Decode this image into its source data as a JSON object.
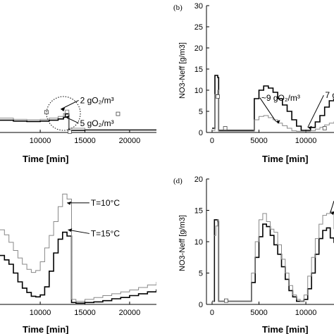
{
  "chart_data": [
    {
      "panel": "a",
      "type": "line",
      "xlabel": "Time [min]",
      "ylabel": "",
      "xticks": [
        10000,
        15000,
        20000
      ],
      "xlim": [
        5500,
        23000
      ],
      "ylim": [
        0,
        30
      ],
      "annotations": [
        {
          "text": "2 gO₂/m³",
          "x": 12300,
          "y": 5.5,
          "tx": 14300,
          "ty": 7.6
        },
        {
          "text": "5 gO₂/m³",
          "x": 12800,
          "y": 3.7,
          "tx": 14300,
          "ty": 2.2
        }
      ],
      "series": [
        {
          "color": "#000000",
          "width": 1.6,
          "x": [
            5500,
            7000,
            8500,
            10000,
            11000,
            12000,
            12600,
            12800,
            13200,
            15000,
            20000,
            23000
          ],
          "y": [
            2.9,
            2.7,
            2.6,
            2.7,
            2.9,
            3.2,
            3.6,
            4.4,
            0.5,
            0.6,
            0.6,
            0.6
          ]
        },
        {
          "color": "#888888",
          "width": 1.0,
          "x": [
            5500,
            7000,
            8500,
            10000,
            11000,
            12000,
            12600,
            12800,
            13200,
            15000,
            20000,
            23000
          ],
          "y": [
            3.4,
            3.1,
            3.0,
            3.1,
            3.4,
            3.8,
            4.5,
            5.3,
            1.0,
            0.7,
            0.7,
            0.7
          ]
        }
      ],
      "markers": [
        {
          "x": 10700,
          "y": 4.8
        },
        {
          "x": 18700,
          "y": 4.4
        },
        {
          "x": 13300,
          "y": 0.2
        }
      ]
    },
    {
      "panel": "b",
      "type": "line",
      "letter": "(b)",
      "xlabel": "Time [min]",
      "ylabel": "NO3-Neff [g/m3]",
      "xticks": [
        0,
        5000,
        10000
      ],
      "yticks": [
        0,
        5,
        10,
        15,
        20,
        25,
        30
      ],
      "xlim": [
        -600,
        13000
      ],
      "ylim": [
        0,
        30
      ],
      "annotations": [
        {
          "text": "~9 gO₂/m³",
          "x": 6800,
          "y": 2.6,
          "tx": 5100,
          "ty": 8.2
        },
        {
          "text": "7 g",
          "x": 10200,
          "y": 1.2,
          "tx": 11900,
          "ty": 8.8
        }
      ],
      "series": [
        {
          "color": "#000000",
          "width": 1.6,
          "x": [
            0,
            300,
            600,
            700,
            1000,
            4000,
            4500,
            5000,
            5500,
            6000,
            6500,
            7000,
            7500,
            8000,
            8500,
            9000,
            9500,
            10000,
            10500,
            11000,
            11500,
            12000,
            12500,
            13000
          ],
          "y": [
            1,
            13.5,
            13,
            0.5,
            0.5,
            0.5,
            8,
            10,
            11,
            10.5,
            9.5,
            8,
            6.5,
            5,
            3,
            1.5,
            0.5,
            0.5,
            1.2,
            2.5,
            4,
            6,
            7.5,
            8
          ]
        },
        {
          "color": "#888888",
          "width": 1.0,
          "x": [
            0,
            300,
            600,
            700,
            1000,
            4000,
            4500,
            5000,
            5500,
            6000,
            6500,
            7000,
            7500,
            8000,
            8500,
            9000,
            9500,
            10000,
            10500,
            11000,
            11500,
            12000,
            12500,
            13000
          ],
          "y": [
            0.5,
            9,
            10,
            0.3,
            0.3,
            0.3,
            3,
            3.8,
            4,
            3.5,
            3,
            2.2,
            1.6,
            1,
            0.4,
            0.3,
            0.3,
            0.3,
            0.4,
            0.8,
            1.2,
            1.8,
            2.2,
            2.6
          ]
        }
      ],
      "markers": [
        {
          "x": 600,
          "y": 8.5
        },
        {
          "x": 1400,
          "y": 1
        },
        {
          "x": 12000,
          "y": 1
        }
      ]
    },
    {
      "panel": "c",
      "type": "line",
      "xlabel": "Time [min]",
      "ylabel": "",
      "xticks": [
        10000,
        15000,
        20000
      ],
      "xlim": [
        5500,
        23000
      ],
      "ylim": [
        0,
        20
      ],
      "annotations": [
        {
          "text": "T=10°C",
          "x": 13000,
          "y": 16.2,
          "tx": 15500,
          "ty": 16.2
        },
        {
          "text": "T=15°C",
          "x": 13100,
          "y": 11.9,
          "tx": 15500,
          "ty": 11.3
        }
      ],
      "series": [
        {
          "color": "#000000",
          "width": 1.6,
          "x": [
            5500,
            6000,
            6500,
            7000,
            7500,
            8000,
            8500,
            9000,
            9500,
            10000,
            10500,
            11000,
            11500,
            12000,
            12500,
            13000,
            13500,
            14000,
            15000,
            16000,
            17000,
            18000,
            19000,
            20000,
            21000,
            22000,
            23000
          ],
          "y": [
            7.8,
            7.1,
            6.4,
            5,
            3.6,
            2.6,
            1.9,
            1.3,
            1.2,
            1.5,
            2.8,
            5.3,
            8.2,
            10.4,
            11.5,
            10.9,
            0.3,
            0.2,
            0.3,
            0.4,
            0.6,
            0.9,
            1.1,
            1.4,
            1.7,
            2,
            2.4
          ]
        },
        {
          "color": "#888888",
          "width": 1.0,
          "x": [
            5500,
            6000,
            6500,
            7000,
            7500,
            8000,
            8500,
            9000,
            9500,
            10000,
            10500,
            11000,
            11500,
            12000,
            12500,
            13000,
            13500,
            14000,
            15000,
            16000,
            17000,
            18000,
            19000,
            20000,
            21000,
            22000,
            23000
          ],
          "y": [
            11.9,
            11.1,
            9.9,
            8.6,
            7.4,
            6.4,
            5.6,
            5.1,
            5.4,
            6.8,
            9,
            11,
            13.2,
            15.6,
            17.6,
            16.8,
            0.8,
            0.5,
            0.8,
            1.1,
            1.4,
            1.7,
            2,
            2.3,
            2.7,
            3.1,
            3.6
          ]
        }
      ]
    },
    {
      "panel": "d",
      "type": "line",
      "letter": "(d)",
      "xlabel": "Time [min]",
      "ylabel": "NO3-Neff [g/m3]",
      "xticks": [
        0,
        5000,
        10000
      ],
      "yticks": [
        0,
        5,
        10,
        15,
        20
      ],
      "xlim": [
        -600,
        13000
      ],
      "ylim": [
        0,
        20
      ],
      "annotations": [
        {
          "text": "",
          "x": 12600,
          "y": 14.6,
          "tx": 13000,
          "ty": 16.5
        }
      ],
      "series": [
        {
          "color": "#000000",
          "width": 1.6,
          "x": [
            0,
            250,
            600,
            700,
            1000,
            3800,
            4200,
            4600,
            5000,
            5400,
            5800,
            6200,
            6600,
            7000,
            7400,
            7800,
            8200,
            8600,
            9000,
            9400,
            9800,
            10200,
            10600,
            11000,
            11400,
            11800,
            12200,
            12600,
            13000
          ],
          "y": [
            0.5,
            13.5,
            13.2,
            0.5,
            0.5,
            0.5,
            3.5,
            7.5,
            10.8,
            12.8,
            12.4,
            11,
            9.5,
            8,
            6,
            4,
            2.2,
            1.2,
            0.5,
            0.5,
            0.8,
            2.5,
            5,
            8,
            10.5,
            11.8,
            12.2,
            10.6,
            9.8
          ]
        },
        {
          "color": "#888888",
          "width": 1.0,
          "x": [
            0,
            200,
            400,
            600,
            700,
            1000,
            3800,
            4200,
            4600,
            5000,
            5400,
            5800,
            6200,
            6600,
            7000,
            7400,
            7800,
            8200,
            8600,
            9000,
            9400,
            9800,
            10200,
            10600,
            11000,
            11400,
            11800,
            12200,
            12600,
            13000
          ],
          "y": [
            0.5,
            11,
            12.5,
            13.5,
            0.5,
            0.5,
            0.5,
            5,
            10,
            13.5,
            14.5,
            13.2,
            12,
            11.5,
            9.5,
            7.2,
            5,
            3,
            1.5,
            0.8,
            0.5,
            1.5,
            4.5,
            7.5,
            10.5,
            12.8,
            14.2,
            14.5,
            14.8,
            12
          ]
        }
      ],
      "markers": [
        {
          "x": 1500,
          "y": 0.6
        }
      ]
    }
  ]
}
